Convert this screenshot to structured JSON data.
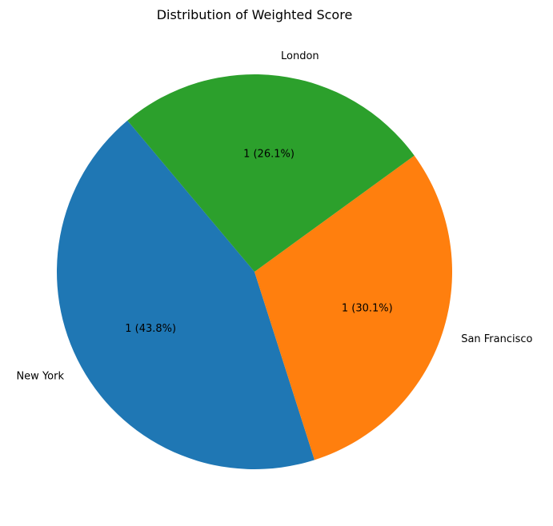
{
  "chart_data": {
    "type": "pie",
    "title": "Distribution of Weighted Score",
    "xlabel": "",
    "ylabel": "",
    "start_angle_deg": 130,
    "direction": "counterclockwise",
    "slices": [
      {
        "label": "New York",
        "value": 43.8,
        "display": "1 (43.8%)",
        "color": "#1f77b4"
      },
      {
        "label": "San Francisco",
        "value": 30.1,
        "display": "1 (30.1%)",
        "color": "#ff7f0e"
      },
      {
        "label": "London",
        "value": 26.1,
        "display": "1 (26.1%)",
        "color": "#2ca02c"
      }
    ]
  }
}
